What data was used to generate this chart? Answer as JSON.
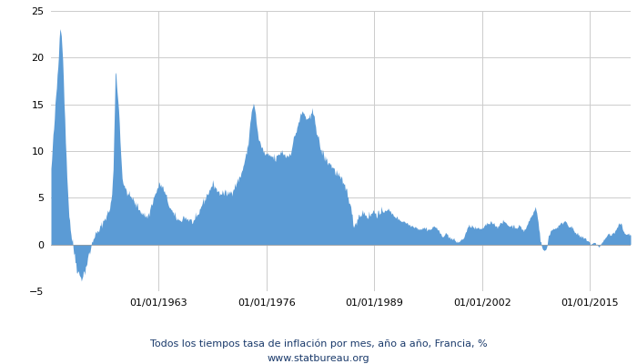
{
  "title_line1": "Todos los tiempos tasa de inflación por mes, año a año, Francia, %",
  "title_line2": "www.statbureau.org",
  "title_color": "#1a3a6b",
  "fill_color": "#5b9bd5",
  "fill_alpha": 1.0,
  "ylim": [
    -5,
    25
  ],
  "yticks": [
    -5,
    0,
    5,
    10,
    15,
    20,
    25
  ],
  "grid_color": "#cccccc",
  "background_color": "#ffffff"
}
